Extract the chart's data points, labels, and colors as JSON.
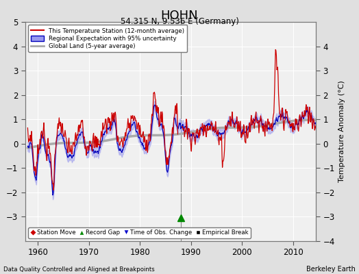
{
  "title": "HOHN",
  "subtitle": "54.315 N, 9.536 E (Germany)",
  "ylabel": "Temperature Anomaly (°C)",
  "xlabel_bottom": "Data Quality Controlled and Aligned at Breakpoints",
  "xlabel_right": "Berkeley Earth",
  "ylim": [
    -4,
    5
  ],
  "xlim": [
    1957.5,
    2014.5
  ],
  "xticks": [
    1960,
    1970,
    1980,
    1990,
    2000,
    2010
  ],
  "yticks_left": [
    -3,
    -2,
    -1,
    0,
    1,
    2,
    3,
    4,
    5
  ],
  "yticks_right": [
    -4,
    -3,
    -2,
    -1,
    0,
    1,
    2,
    3,
    4
  ],
  "bg_color": "#e0e0e0",
  "plot_bg_color": "#f0f0f0",
  "grid_color": "#ffffff",
  "uncertainty_color": "#9999ee",
  "uncertainty_alpha": 0.5,
  "station_line_color": "#cc0000",
  "regional_line_color": "#0000bb",
  "global_line_color": "#aaaaaa",
  "breakpoint_x": 1988.0,
  "legend_labels": [
    "This Temperature Station (12-month average)",
    "Regional Expectation with 95% uncertainty",
    "Global Land (5-year average)"
  ]
}
